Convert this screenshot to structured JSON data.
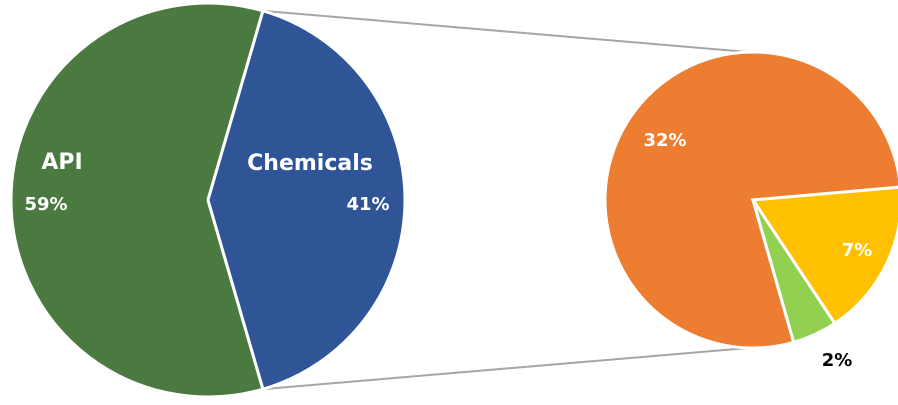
{
  "chart_data": [
    {
      "type": "pie",
      "slices": [
        {
          "label": "API",
          "value": 59,
          "value_label": "59%",
          "color": "#4A7A3F"
        },
        {
          "label": "Chemicals",
          "value": 41,
          "value_label": "41%",
          "color": "#2F5596"
        }
      ]
    },
    {
      "type": "pie",
      "slices": [
        {
          "label": "",
          "value": 32,
          "value_label": "32%",
          "color": "#ED7D31"
        },
        {
          "label": "",
          "value": 7,
          "value_label": "7%",
          "color": "#FFC000"
        },
        {
          "label": "",
          "value": 2,
          "value_label": "2%",
          "color": "#92D050"
        }
      ]
    }
  ],
  "connector_color": "#A6A6A6"
}
